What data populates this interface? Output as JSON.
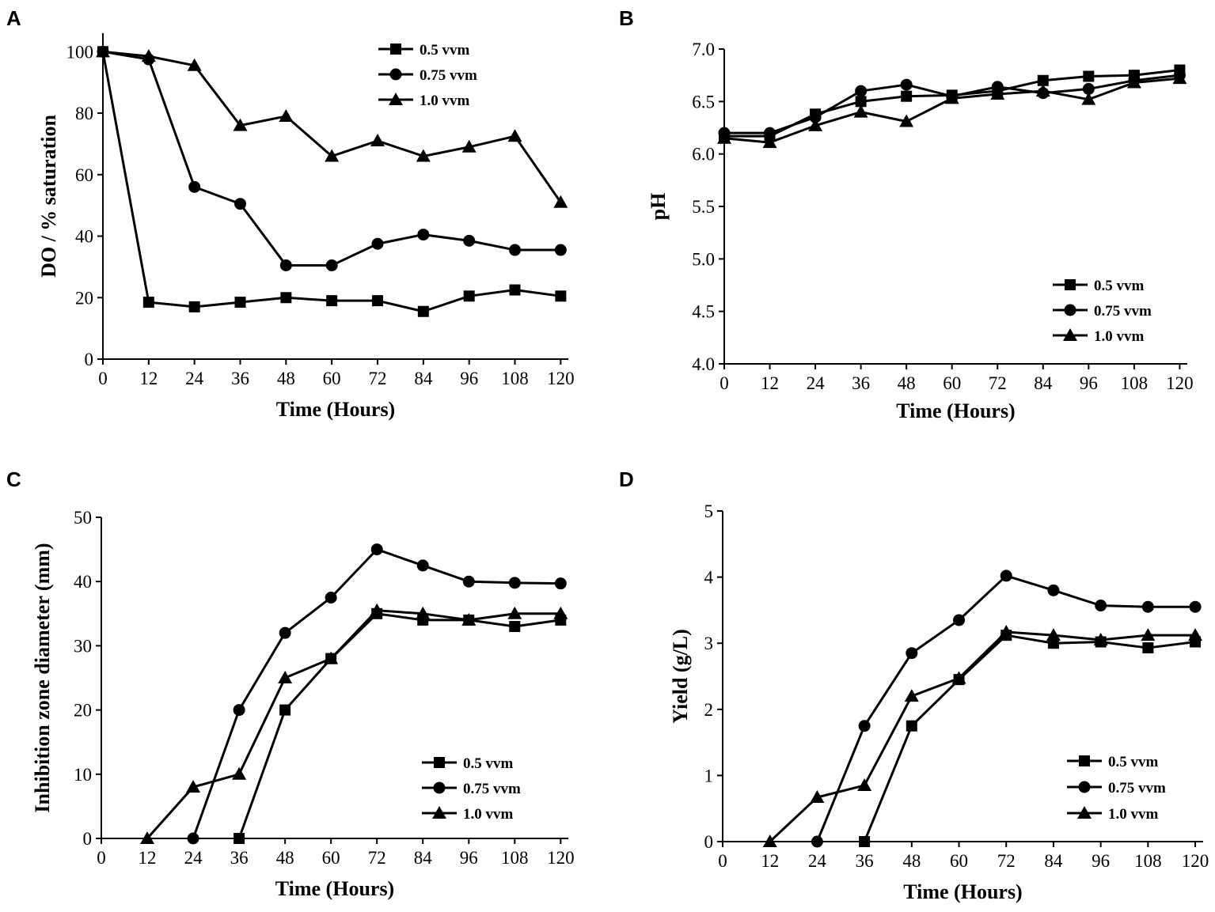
{
  "chart_data": [
    {
      "panel": "A",
      "type": "line",
      "x": [
        0,
        12,
        24,
        36,
        48,
        60,
        72,
        84,
        96,
        108,
        120
      ],
      "x_tick_labels": [
        "0",
        "12",
        "24",
        "36",
        "48",
        "60",
        "72",
        "84",
        "96",
        "108",
        "120"
      ],
      "y_tick_labels": [
        "0",
        "20",
        "40",
        "60",
        "80",
        "100"
      ],
      "xlim": [
        0,
        122
      ],
      "ylim": [
        0,
        106
      ],
      "xlabel": "Time (Hours)",
      "ylabel": "DO / % saturation",
      "legend_position": "top-right",
      "series": [
        {
          "name": "0.5 vvm",
          "marker": "square",
          "values": [
            100,
            18.5,
            17,
            18.5,
            20,
            19,
            19,
            15.5,
            20.5,
            22.5,
            20.5
          ]
        },
        {
          "name": "0.75 vvm",
          "marker": "circle",
          "values": [
            100,
            97.5,
            56,
            50.5,
            30.5,
            30.5,
            37.5,
            40.5,
            38.5,
            35.5,
            35.5
          ]
        },
        {
          "name": "1.0 vvm",
          "marker": "triangle",
          "values": [
            100,
            98.5,
            95.5,
            76,
            79,
            66,
            71,
            66,
            69,
            72.5,
            51
          ]
        }
      ]
    },
    {
      "panel": "B",
      "type": "line",
      "x": [
        0,
        12,
        24,
        36,
        48,
        60,
        72,
        84,
        96,
        108,
        120
      ],
      "x_tick_labels": [
        "0",
        "12",
        "24",
        "36",
        "48",
        "60",
        "72",
        "84",
        "96",
        "108",
        "120"
      ],
      "y_tick_labels": [
        "4.0",
        "4.5",
        "5.0",
        "5.5",
        "6.0",
        "6.5",
        "7.0"
      ],
      "xlim": [
        0,
        122
      ],
      "ylim": [
        4.0,
        7.0
      ],
      "xlabel": "Time (Hours)",
      "ylabel": "pH",
      "legend_position": "bottom-right",
      "series": [
        {
          "name": "0.5 vvm",
          "marker": "square",
          "values": [
            6.17,
            6.17,
            6.38,
            6.5,
            6.55,
            6.56,
            6.6,
            6.7,
            6.74,
            6.75,
            6.8
          ]
        },
        {
          "name": "0.75 vvm",
          "marker": "circle",
          "values": [
            6.2,
            6.2,
            6.35,
            6.6,
            6.66,
            6.55,
            6.64,
            6.58,
            6.62,
            6.7,
            6.75
          ]
        },
        {
          "name": "1.0 vvm",
          "marker": "triangle",
          "values": [
            6.15,
            6.11,
            6.27,
            6.4,
            6.31,
            6.53,
            6.57,
            6.6,
            6.52,
            6.68,
            6.72
          ]
        }
      ]
    },
    {
      "panel": "C",
      "type": "line",
      "x": [
        0,
        12,
        24,
        36,
        48,
        60,
        72,
        84,
        96,
        108,
        120
      ],
      "x_tick_labels": [
        "0",
        "12",
        "24",
        "36",
        "48",
        "60",
        "72",
        "84",
        "96",
        "108",
        "120"
      ],
      "y_tick_labels": [
        "0",
        "10",
        "20",
        "30",
        "40",
        "50"
      ],
      "xlim": [
        0,
        122
      ],
      "ylim": [
        0,
        50
      ],
      "xlabel": "Time (Hours)",
      "ylabel": "Inhibition zone diameter (mm)",
      "legend_position": "bottom-right",
      "series": [
        {
          "name": "0.5 vvm",
          "marker": "square",
          "x": [
            36,
            48,
            60,
            72,
            84,
            96,
            108,
            120
          ],
          "values": [
            0,
            20,
            28,
            35,
            34,
            34,
            33,
            34
          ]
        },
        {
          "name": "0.75 vvm",
          "marker": "circle",
          "x": [
            24,
            36,
            48,
            60,
            72,
            84,
            96,
            108,
            120
          ],
          "values": [
            0,
            20,
            32,
            37.5,
            45,
            42.5,
            40,
            39.8,
            39.7
          ]
        },
        {
          "name": "1.0 vvm",
          "marker": "triangle",
          "x": [
            12,
            24,
            36,
            48,
            60,
            72,
            84,
            96,
            108,
            120
          ],
          "values": [
            0,
            8,
            10,
            25,
            28,
            35.5,
            35,
            34,
            35,
            35
          ]
        }
      ]
    },
    {
      "panel": "D",
      "type": "line",
      "x": [
        0,
        12,
        24,
        36,
        48,
        60,
        72,
        84,
        96,
        108,
        120
      ],
      "x_tick_labels": [
        "0",
        "12",
        "24",
        "36",
        "48",
        "60",
        "72",
        "84",
        "96",
        "108",
        "120"
      ],
      "y_tick_labels": [
        "0",
        "1",
        "2",
        "3",
        "4",
        "5"
      ],
      "xlim": [
        0,
        122
      ],
      "ylim": [
        0,
        5
      ],
      "xlabel": "Time (Hours)",
      "ylabel": "Yield (g/L)",
      "legend_position": "bottom-right",
      "series": [
        {
          "name": "0.5 vvm",
          "marker": "square",
          "x": [
            36,
            48,
            60,
            72,
            84,
            96,
            108,
            120
          ],
          "values": [
            0,
            1.75,
            2.45,
            3.12,
            3.0,
            3.02,
            2.93,
            3.02
          ]
        },
        {
          "name": "0.75 vvm",
          "marker": "circle",
          "x": [
            24,
            36,
            48,
            60,
            72,
            84,
            96,
            108,
            120
          ],
          "values": [
            0,
            1.75,
            2.85,
            3.35,
            4.02,
            3.8,
            3.57,
            3.55,
            3.55
          ]
        },
        {
          "name": "1.0 vvm",
          "marker": "triangle",
          "x": [
            12,
            24,
            36,
            48,
            60,
            72,
            84,
            96,
            108,
            120
          ],
          "values": [
            0,
            0.67,
            0.85,
            2.2,
            2.47,
            3.17,
            3.12,
            3.05,
            3.12,
            3.12
          ]
        }
      ]
    }
  ]
}
